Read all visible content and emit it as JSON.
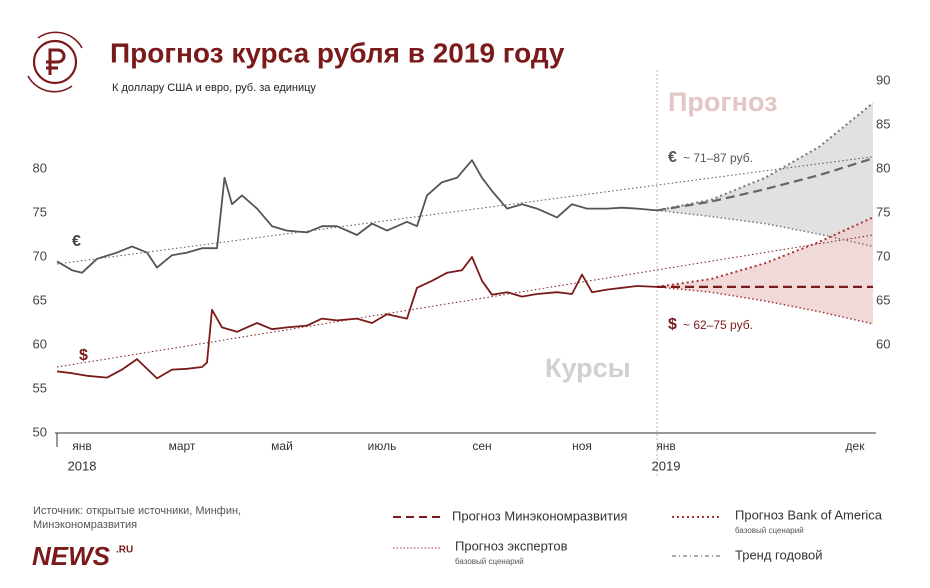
{
  "chart_data": {
    "type": "line",
    "title": "Прогноз курса рубля в 2019 году",
    "subtitle": "К доллару США и евро, руб. за единицу",
    "ylim": [
      50,
      90
    ],
    "yticks": [
      50,
      55,
      60,
      65,
      70,
      75,
      80
    ],
    "y2lim": [
      50,
      90
    ],
    "y2ticks": [
      60,
      65,
      70,
      75,
      80,
      85,
      90
    ],
    "xlim": [
      0,
      24
    ],
    "xticks": [
      {
        "value": 0.5,
        "label": "янв"
      },
      {
        "value": 2.5,
        "label": "март"
      },
      {
        "value": 4.5,
        "label": "май"
      },
      {
        "value": 6.5,
        "label": "июль"
      },
      {
        "value": 8.5,
        "label": "сен"
      },
      {
        "value": 10.5,
        "label": "ноя"
      },
      {
        "value": 12.5,
        "label": "янв"
      },
      {
        "value": 23,
        "label": "дек"
      }
    ],
    "year_labels": [
      {
        "value": 0.5,
        "label": "2018"
      },
      {
        "value": 12.5,
        "label": "2019"
      }
    ],
    "series": [
      {
        "name": "€",
        "color": "#555555",
        "x": [
          0,
          0.3,
          0.5,
          0.8,
          1.2,
          1.5,
          1.8,
          2.0,
          2.3,
          2.6,
          2.9,
          3.2,
          3.35,
          3.5,
          3.7,
          4.0,
          4.3,
          4.6,
          5.0,
          5.3,
          5.6,
          6.0,
          6.3,
          6.6,
          7.0,
          7.2,
          7.4,
          7.7,
          8.0,
          8.3,
          8.5,
          8.7,
          9.0,
          9.3,
          9.6,
          10.0,
          10.3,
          10.6,
          11.0,
          11.3,
          11.6,
          12
        ],
        "values": [
          69.5,
          68.5,
          68.2,
          69.8,
          70.5,
          71.2,
          70.5,
          68.8,
          70.2,
          70.5,
          71,
          71,
          79,
          76,
          77,
          75.5,
          73.5,
          73,
          72.8,
          73.5,
          73.5,
          72.5,
          73.8,
          73,
          74,
          73.5,
          77,
          78.5,
          79,
          81,
          79,
          77.5,
          75.5,
          76,
          75.5,
          74.5,
          76,
          75.5,
          75.5,
          75.6,
          75.5,
          75.3
        ]
      },
      {
        "name": "$",
        "color": "#7a1a1a",
        "x": [
          0,
          0.3,
          0.6,
          1.0,
          1.3,
          1.6,
          2.0,
          2.3,
          2.6,
          2.9,
          3.0,
          3.1,
          3.3,
          3.6,
          4.0,
          4.3,
          4.6,
          5.0,
          5.3,
          5.6,
          6.0,
          6.3,
          6.6,
          7.0,
          7.2,
          7.5,
          7.8,
          8.1,
          8.3,
          8.5,
          8.7,
          9.0,
          9.3,
          9.6,
          10.0,
          10.3,
          10.5,
          10.7,
          11.0,
          11.3,
          11.6,
          12
        ],
        "values": [
          57,
          56.8,
          56.5,
          56.3,
          57.2,
          58.4,
          56.2,
          57.2,
          57.3,
          57.5,
          58,
          64,
          62,
          61.5,
          62.5,
          61.8,
          62,
          62.2,
          63,
          62.8,
          63,
          62.5,
          63.5,
          63,
          66.5,
          67.3,
          68.2,
          68.5,
          70,
          67.3,
          65.7,
          66,
          65.5,
          65.8,
          66,
          65.8,
          68,
          66,
          66.3,
          66.5,
          66.7,
          66.6
        ]
      }
    ],
    "forecast": {
      "x": [
        12,
        15,
        18,
        21,
        24
      ],
      "eur": {
        "minek": [
          75.3,
          76.3,
          77.7,
          79.3,
          81.2
        ],
        "upper": [
          75.3,
          76.5,
          79,
          82.5,
          87.5
        ],
        "lower": [
          75.3,
          74.6,
          73.8,
          72.6,
          71.2
        ]
      },
      "usd": {
        "minek": [
          66.6,
          66.6,
          66.6,
          66.6,
          66.6
        ],
        "upper": [
          66.6,
          67.5,
          69.3,
          71.7,
          74.5
        ],
        "lower": [
          66.6,
          66.0,
          65.0,
          63.8,
          62.4
        ]
      }
    },
    "trend": {
      "x": [
        0,
        24
      ],
      "eur": [
        69.2,
        81.4
      ],
      "usd": [
        57.5,
        72.5
      ]
    },
    "annotations": {
      "forecast": "Прогноз",
      "rates": "Курсы",
      "eur_range": "~ 71–87 руб.",
      "usd_range": "~ 62–75 руб."
    },
    "legend": [
      {
        "label": "Прогноз Минэкономразвития"
      },
      {
        "label": "Прогноз Bank of America",
        "sub": "базовый сценарий"
      },
      {
        "label": "Прогноз экспертов",
        "sub": "базовый сценарий"
      },
      {
        "label": "Тренд годовой"
      }
    ],
    "source": [
      "Источник: открытые источники, Минфин,",
      "Минэкономразвития"
    ],
    "logo": {
      "main": "NEWS",
      "suffix": ".RU"
    }
  }
}
